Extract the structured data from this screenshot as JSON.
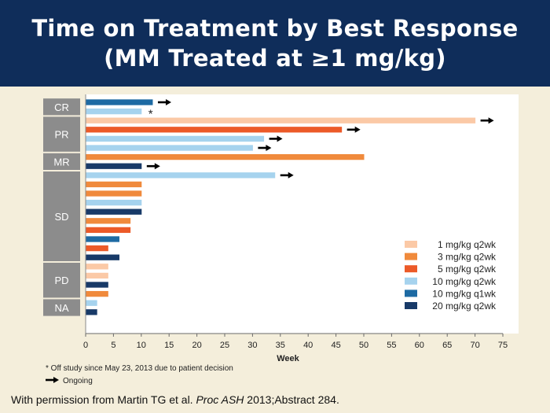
{
  "title": {
    "line1": "Time on Treatment by Best Response",
    "line2": "(MM Treated at ≥1 mg/kg)"
  },
  "colors": {
    "1 mg/kg q2wk": "#fbc9a6",
    "3 mg/kg q2wk": "#f08a3c",
    "5 mg/kg q2wk": "#ec5a28",
    "10 mg/kg q2wk": "#a6d3ee",
    "10 mg/kg q1wk": "#1d6aa3",
    "20 mg/kg q2wk": "#183a68"
  },
  "chart_data": {
    "type": "bar",
    "orientation": "horizontal",
    "xlabel": "Week",
    "xlim": [
      0,
      75
    ],
    "xticks": [
      0,
      5,
      10,
      15,
      20,
      25,
      30,
      35,
      40,
      45,
      50,
      55,
      60,
      65,
      70,
      75
    ],
    "legend_position": "right",
    "legend": [
      "1 mg/kg q2wk",
      "3 mg/kg q2wk",
      "5 mg/kg q2wk",
      "10 mg/kg q2wk",
      "10 mg/kg q1wk",
      "20 mg/kg q2wk"
    ],
    "groups": [
      {
        "label": "CR",
        "bars": [
          {
            "value": 12,
            "series": "10 mg/kg q1wk",
            "ongoing": true,
            "off_study": false
          },
          {
            "value": 10,
            "series": "10 mg/kg q2wk",
            "ongoing": false,
            "off_study": true
          }
        ]
      },
      {
        "label": "PR",
        "bars": [
          {
            "value": 70,
            "series": "1 mg/kg q2wk",
            "ongoing": true,
            "off_study": false
          },
          {
            "value": 46,
            "series": "5 mg/kg q2wk",
            "ongoing": true,
            "off_study": false
          },
          {
            "value": 32,
            "series": "10 mg/kg q2wk",
            "ongoing": true,
            "off_study": false
          },
          {
            "value": 30,
            "series": "10 mg/kg q2wk",
            "ongoing": true,
            "off_study": false
          }
        ]
      },
      {
        "label": "MR",
        "bars": [
          {
            "value": 50,
            "series": "3 mg/kg q2wk",
            "ongoing": false,
            "off_study": false
          },
          {
            "value": 10,
            "series": "20 mg/kg q2wk",
            "ongoing": true,
            "off_study": false
          }
        ]
      },
      {
        "label": "SD",
        "bars": [
          {
            "value": 34,
            "series": "10 mg/kg q2wk",
            "ongoing": true,
            "off_study": false
          },
          {
            "value": 10,
            "series": "3 mg/kg q2wk",
            "ongoing": false,
            "off_study": false
          },
          {
            "value": 10,
            "series": "3 mg/kg q2wk",
            "ongoing": false,
            "off_study": false
          },
          {
            "value": 10,
            "series": "10 mg/kg q2wk",
            "ongoing": false,
            "off_study": false
          },
          {
            "value": 10,
            "series": "20 mg/kg q2wk",
            "ongoing": false,
            "off_study": false
          },
          {
            "value": 8,
            "series": "3 mg/kg q2wk",
            "ongoing": false,
            "off_study": false
          },
          {
            "value": 8,
            "series": "5 mg/kg q2wk",
            "ongoing": false,
            "off_study": false
          },
          {
            "value": 6,
            "series": "10 mg/kg q1wk",
            "ongoing": false,
            "off_study": false
          },
          {
            "value": 4,
            "series": "5 mg/kg q2wk",
            "ongoing": false,
            "off_study": false
          },
          {
            "value": 6,
            "series": "20 mg/kg q2wk",
            "ongoing": false,
            "off_study": false
          }
        ]
      },
      {
        "label": "PD",
        "bars": [
          {
            "value": 4,
            "series": "1 mg/kg q2wk",
            "ongoing": false,
            "off_study": false
          },
          {
            "value": 4,
            "series": "1 mg/kg q2wk",
            "ongoing": false,
            "off_study": false
          },
          {
            "value": 4,
            "series": "20 mg/kg q2wk",
            "ongoing": false,
            "off_study": false
          },
          {
            "value": 4,
            "series": "3 mg/kg q2wk",
            "ongoing": false,
            "off_study": false
          }
        ]
      },
      {
        "label": "NA",
        "bars": [
          {
            "value": 2,
            "series": "10 mg/kg q2wk",
            "ongoing": false,
            "off_study": false
          },
          {
            "value": 2,
            "series": "20 mg/kg q2wk",
            "ongoing": false,
            "off_study": false
          }
        ]
      }
    ],
    "footnotes": {
      "off_study": "* Off study since May 23, 2013 due to patient decision",
      "ongoing": "Ongoing"
    }
  },
  "footer": {
    "prefix": "With permission from Martin TG et al. ",
    "journal": "Proc ASH",
    "suffix": " 2013;Abstract 284."
  }
}
